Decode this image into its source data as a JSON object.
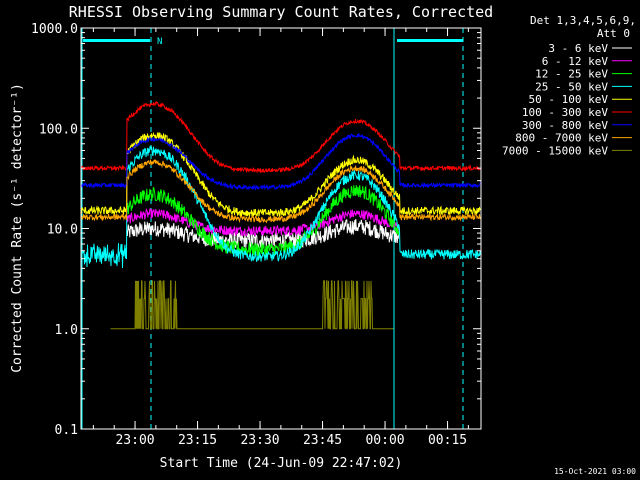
{
  "chart_data": {
    "type": "line",
    "title": "RHESSI Observing Summary Count Rates, Corrected",
    "xlabel": "Start Time (24-Jun-09 22:47:02)",
    "ylabel": "Corrected Count Rate (s⁻¹ detector⁻¹)",
    "y_scale": "log",
    "ylim": [
      0.1,
      1000
    ],
    "xlim_minutes": [
      0,
      96
    ],
    "x_tick_labels": [
      "23:00",
      "23:15",
      "23:30",
      "23:45",
      "00:00",
      "00:15"
    ],
    "x_tick_minutes": [
      12.97,
      27.97,
      42.97,
      57.97,
      72.97,
      87.97
    ],
    "y_tick_labels": [
      "0.1",
      "1.0",
      "10.0",
      "100.0",
      "1000.0"
    ],
    "y_tick_values": [
      0.1,
      1,
      10,
      100,
      1000
    ],
    "legend_header": [
      "Det 1,3,4,5,6,9,",
      "Att 0"
    ],
    "legend_position": "right",
    "series": [
      {
        "name": "3 - 6 keV",
        "color": "#ffffff",
        "base": 8,
        "peak1": 10,
        "peak2": 10.5,
        "noise": 0.08
      },
      {
        "name": "6 - 12 keV",
        "color": "#ff00ff",
        "base": 10,
        "peak1": 14,
        "peak2": 14,
        "noise": 0.05
      },
      {
        "name": "12 - 25 keV",
        "color": "#00ff00",
        "base": 6.5,
        "peak1": 22,
        "peak2": 24,
        "noise": 0.07
      },
      {
        "name": "25 - 50 keV",
        "color": "#00ffff",
        "base": 5.5,
        "peak1": 60,
        "peak2": 34,
        "noise": 0.05
      },
      {
        "name": "50 - 100 keV",
        "color": "#ffff00",
        "base": 15,
        "peak1": 85,
        "peak2": 48,
        "noise": 0.04
      },
      {
        "name": "100 - 300 keV",
        "color": "#ff0000",
        "base": 40,
        "peak1": 175,
        "peak2": 118,
        "noise": 0.02
      },
      {
        "name": "300 - 800 keV",
        "color": "#0000ff",
        "base": 27,
        "peak1": 78,
        "peak2": 85,
        "noise": 0.02
      },
      {
        "name": "800 - 7000 keV",
        "color": "#ffa500",
        "base": 13,
        "peak1": 46,
        "peak2": 40,
        "noise": 0.03
      },
      {
        "name": "7000 - 15000 keV",
        "color": "#808000",
        "base": 1,
        "peak1": 3,
        "peak2": 3,
        "noise": 0.15
      }
    ],
    "annotations": [
      "N"
    ],
    "footer": "15-Oct-2021 03:00"
  }
}
